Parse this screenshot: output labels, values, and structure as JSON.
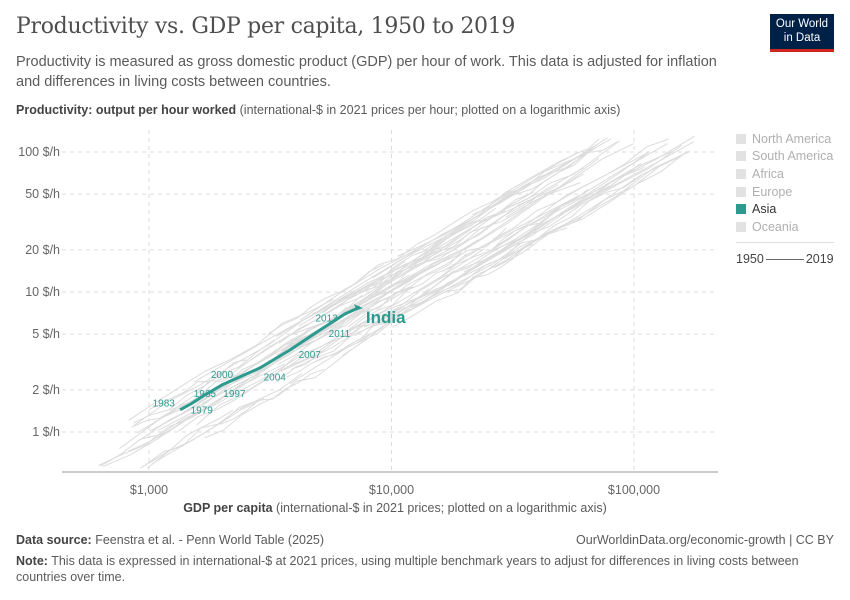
{
  "header": {
    "title": "Productivity vs. GDP per capita, 1950 to 2019",
    "subtitle": "Productivity is measured as gross domestic product (GDP) per hour of work. This data is adjusted for inflation and differences in living costs between countries.",
    "logo": "Our World in Data"
  },
  "chart_data": {
    "type": "scatter",
    "title": "Productivity vs. GDP per capita, 1950 to 2019",
    "ylabel_bold": "Productivity: output per hour worked",
    "ylabel_rest": " (international-$ in 2021 prices per hour; plotted on a logarithmic axis)",
    "xlabel_bold": "GDP per capita",
    "xlabel_rest": " (international-$ in 2021 prices; plotted on a logarithmic axis)",
    "x_scale": "log",
    "y_scale": "log",
    "xlim": [
      480,
      220000
    ],
    "ylim": [
      0.5,
      140
    ],
    "x_ticks": [
      {
        "v": 1000,
        "label": "$1,000"
      },
      {
        "v": 10000,
        "label": "$10,000"
      },
      {
        "v": 100000,
        "label": "$100,000"
      }
    ],
    "y_ticks": [
      {
        "v": 1,
        "label": "1 $/h"
      },
      {
        "v": 2,
        "label": "2 $/h"
      },
      {
        "v": 5,
        "label": "5 $/h"
      },
      {
        "v": 10,
        "label": "10 $/h"
      },
      {
        "v": 20,
        "label": "20 $/h"
      },
      {
        "v": 50,
        "label": "50 $/h"
      },
      {
        "v": 100,
        "label": "100 $/h"
      }
    ],
    "grid": true,
    "legend": {
      "placement": "right",
      "items": [
        {
          "label": "North America",
          "active": false
        },
        {
          "label": "South America",
          "active": false
        },
        {
          "label": "Africa",
          "active": false
        },
        {
          "label": "Europe",
          "active": false
        },
        {
          "label": "Asia",
          "active": true
        },
        {
          "label": "Oceania",
          "active": false
        }
      ]
    },
    "time_range": {
      "start": "1950",
      "end": "2019"
    },
    "highlight": {
      "name": "India",
      "color": "#2c9a8f",
      "points": [
        {
          "x": 1343,
          "y": 1.44
        },
        {
          "x": 1500,
          "y": 1.6
        },
        {
          "x": 1702,
          "y": 1.84
        },
        {
          "x": 1620,
          "y": 1.75
        },
        {
          "x": 2000,
          "y": 2.17
        },
        {
          "x": 2870,
          "y": 2.87
        },
        {
          "x": 3812,
          "y": 3.85
        },
        {
          "x": 5070,
          "y": 5.35
        },
        {
          "x": 6420,
          "y": 6.96
        },
        {
          "x": 7410,
          "y": 7.8
        }
      ],
      "year_labels": [
        {
          "year": "1979",
          "x": 1650,
          "y": 1.45
        },
        {
          "year": "1983",
          "x": 1150,
          "y": 1.62
        },
        {
          "year": "1965",
          "x": 1700,
          "y": 1.9
        },
        {
          "year": "1997",
          "x": 2250,
          "y": 1.9
        },
        {
          "year": "2000",
          "x": 2000,
          "y": 2.6
        },
        {
          "year": "2004",
          "x": 3300,
          "y": 2.5
        },
        {
          "year": "2007",
          "x": 4600,
          "y": 3.6
        },
        {
          "year": "2011",
          "x": 6100,
          "y": 5.1
        },
        {
          "year": "2013",
          "x": 5400,
          "y": 6.6
        }
      ]
    }
  },
  "footer": {
    "source_label": "Data source:",
    "source": " Feenstra et al. - Penn World Table (2025)",
    "url": "OurWorldinData.org/economic-growth | CC BY",
    "note_label": "Note:",
    "note": " This data is expressed in international-$ at 2021 prices, using multiple benchmark years to adjust for differences in living costs between countries over time."
  }
}
